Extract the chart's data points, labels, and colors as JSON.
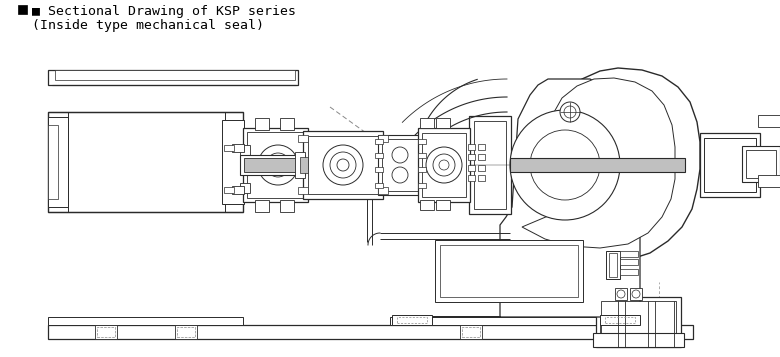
{
  "title_line1": "■ Sectional Drawing of KSP series",
  "title_line2": "(Inside type mechanical seal)",
  "bg_color": "#ffffff",
  "lc": "#2a2a2a",
  "dc": "#888888",
  "gc": "#bbbbbb",
  "shaft_gray": "#c0c0c0"
}
